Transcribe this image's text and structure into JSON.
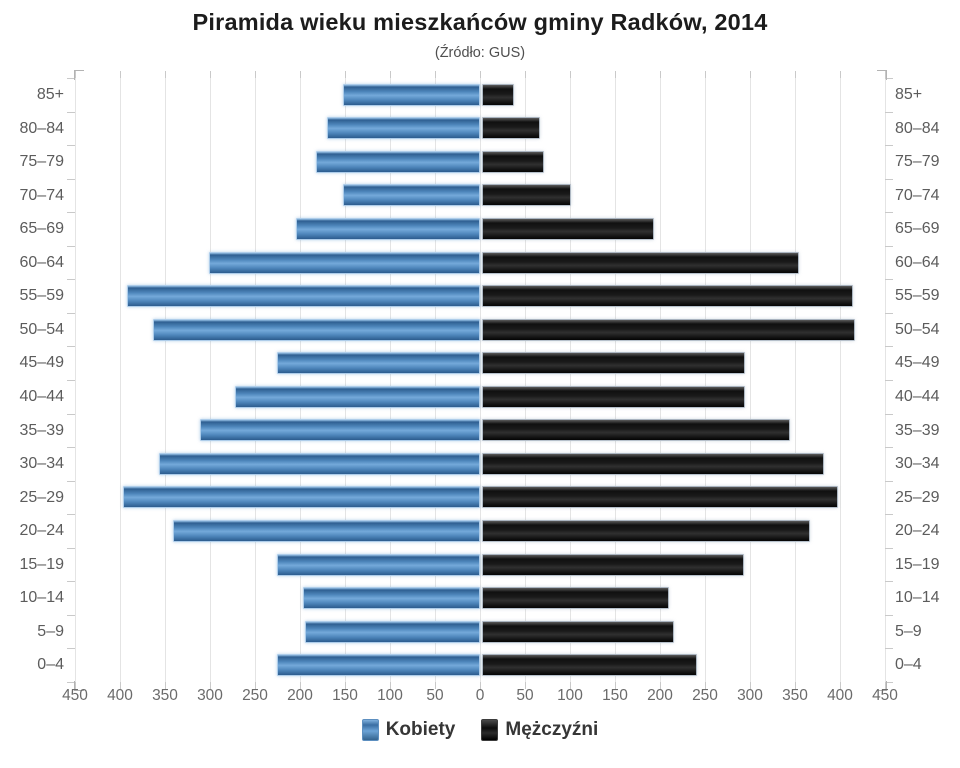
{
  "chart_data": {
    "type": "bar",
    "variant": "population_pyramid",
    "title": "Piramida wieku mieszkańców gminy Radków, 2014",
    "subtitle": "(Źródło: GUS)",
    "categories_top_to_bottom": [
      "85+",
      "80–84",
      "75–79",
      "70–74",
      "65–69",
      "60–64",
      "55–59",
      "50–54",
      "45–49",
      "40–44",
      "35–39",
      "30–34",
      "25–29",
      "20–24",
      "15–19",
      "10–14",
      "5–9",
      "0–4"
    ],
    "series": [
      {
        "name": "Kobiety",
        "side": "left",
        "color": "#4d85ba",
        "values": [
          150,
          168,
          180,
          150,
          202,
          299,
          390,
          361,
          223,
          270,
          309,
          354,
          394,
          339,
          223,
          194,
          192,
          223
        ]
      },
      {
        "name": "Mężczyźni",
        "side": "right",
        "color": "#141414",
        "values": [
          33,
          62,
          67,
          97,
          189,
          350,
          410,
          412,
          290,
          290,
          340,
          378,
          393,
          362,
          289,
          206,
          211,
          237
        ]
      }
    ],
    "x_axis": {
      "limit_each_side": 450,
      "tick_step": 50,
      "tick_labels": [
        "450",
        "400",
        "350",
        "300",
        "250",
        "200",
        "150",
        "100",
        "50",
        "0",
        "50",
        "100",
        "150",
        "200",
        "250",
        "300",
        "350",
        "400",
        "450"
      ]
    },
    "grid": true,
    "gridline_color": "#e4e4e4",
    "legend_position": "bottom"
  }
}
